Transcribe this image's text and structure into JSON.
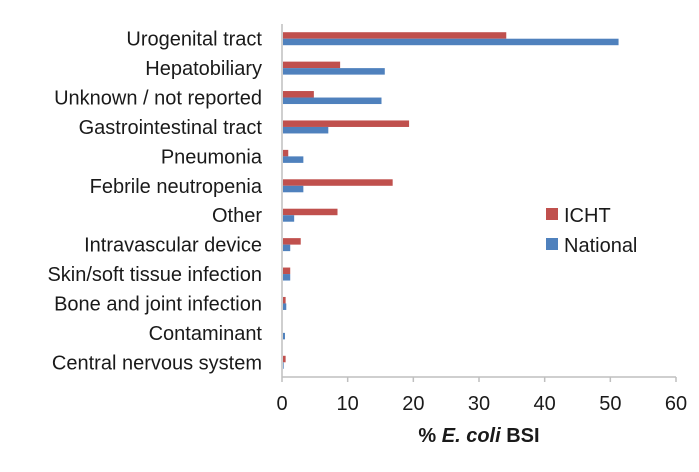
{
  "chart_data": {
    "type": "bar",
    "orientation": "horizontal",
    "categories": [
      "Urogenital tract",
      "Hepatobiliary",
      "Unknown / not reported",
      "Gastrointestinal tract",
      "Pneumonia",
      "Febrile neutropenia",
      "Other",
      "Intravascular device",
      "Skin/soft tissue infection",
      "Bone and joint infection",
      "Contaminant",
      "Central nervous system"
    ],
    "series": [
      {
        "name": "ICHT",
        "color": "#c0504d",
        "values": [
          34,
          8.7,
          4.7,
          19.2,
          0.8,
          16.7,
          8.3,
          2.7,
          1.1,
          0.4,
          0,
          0.4
        ]
      },
      {
        "name": "National",
        "color": "#4f81bd",
        "values": [
          51.1,
          15.5,
          15,
          6.9,
          3.1,
          3.1,
          1.7,
          1.1,
          1.1,
          0.5,
          0.3,
          0.1
        ]
      }
    ],
    "xlabel": {
      "prefix": "% ",
      "italic": "E. coli",
      "suffix": " BSI"
    },
    "xticks": [
      "0",
      "10",
      "20",
      "30",
      "40",
      "50",
      "60"
    ],
    "xlim": [
      0,
      60
    ],
    "grid": false,
    "legend_position": "right"
  }
}
